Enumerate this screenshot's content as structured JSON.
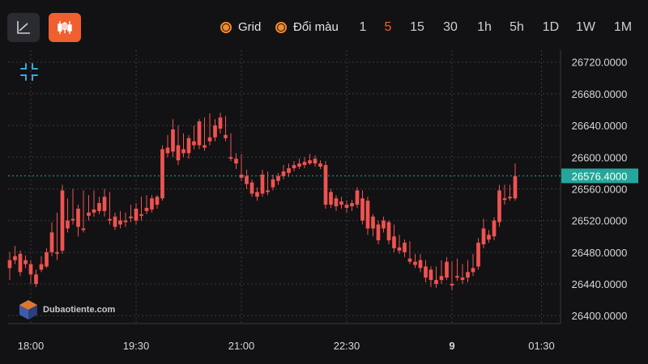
{
  "toolbar": {
    "line_tool_icon": "line-chart-icon",
    "candle_tool_icon": "candlestick-icon",
    "accent": "#ef5f2f",
    "toggles": [
      {
        "label": "Grid"
      },
      {
        "label": "Đổi màu"
      }
    ],
    "timeframes": [
      "1",
      "5",
      "15",
      "30",
      "1h",
      "5h",
      "1D",
      "1W",
      "1M"
    ],
    "active_timeframe": "5"
  },
  "watermark": {
    "text": "Dubaotiente.com"
  },
  "chart_data": {
    "type": "candlestick",
    "grid": true,
    "up_color": "#26a69a",
    "down_color": "#ef5350",
    "x_ticks": [
      "18:00",
      "19:30",
      "21:00",
      "22:30",
      "9",
      "01:30"
    ],
    "y_ticks": [
      "26720.0000",
      "26680.0000",
      "26640.0000",
      "26600.0000",
      "26560.0000",
      "26520.0000",
      "26480.0000",
      "26440.0000",
      "26400.0000"
    ],
    "ylim": [
      26390,
      26735
    ],
    "current_price": "26576.4000",
    "current_value": 26576.4,
    "candles": [
      [
        26470,
        26480,
        26460,
        26445
      ],
      [
        26475,
        26488,
        26470,
        26465
      ],
      [
        26478,
        26482,
        26455,
        26450
      ],
      [
        26470,
        26476,
        26465,
        26460
      ],
      [
        26465,
        26470,
        26452,
        26440
      ],
      [
        26452,
        26458,
        26440,
        26436
      ],
      [
        26465,
        26475,
        26458,
        26455
      ],
      [
        26480,
        26485,
        26462,
        26460
      ],
      [
        26505,
        26518,
        26480,
        26475
      ],
      [
        26480,
        26530,
        26478,
        26470
      ],
      [
        26558,
        26565,
        26482,
        26478
      ],
      [
        26520,
        26548,
        26510,
        26505
      ],
      [
        26522,
        26560,
        26520,
        26515
      ],
      [
        26535,
        26540,
        26512,
        26500
      ],
      [
        26510,
        26558,
        26508,
        26505
      ],
      [
        26530,
        26552,
        26526,
        26520
      ],
      [
        26534,
        26558,
        26530,
        26525
      ],
      [
        26542,
        26550,
        26532,
        26528
      ],
      [
        26550,
        26560,
        26532,
        26525
      ],
      [
        26522,
        26556,
        26520,
        26515
      ],
      [
        26525,
        26530,
        26512,
        26508
      ],
      [
        26520,
        26532,
        26515,
        26510
      ],
      [
        26520,
        26530,
        26518,
        26512
      ],
      [
        26525,
        26540,
        26523,
        26518
      ],
      [
        26535,
        26542,
        26520,
        26515
      ],
      [
        26528,
        26550,
        26526,
        26520
      ],
      [
        26536,
        26552,
        26532,
        26528
      ],
      [
        26548,
        26552,
        26534,
        26530
      ],
      [
        26550,
        26552,
        26540,
        26535
      ],
      [
        26610,
        26615,
        26548,
        26545
      ],
      [
        26612,
        26628,
        26605,
        26600
      ],
      [
        26635,
        26648,
        26607,
        26600
      ],
      [
        26615,
        26640,
        26596,
        26590
      ],
      [
        26610,
        26630,
        26605,
        26600
      ],
      [
        26624,
        26628,
        26605,
        26598
      ],
      [
        26620,
        26640,
        26615,
        26610
      ],
      [
        26645,
        26648,
        26615,
        26610
      ],
      [
        26615,
        26650,
        26612,
        26608
      ],
      [
        26625,
        26655,
        26620,
        26615
      ],
      [
        26640,
        26648,
        26625,
        26620
      ],
      [
        26650,
        26656,
        26636,
        26630
      ],
      [
        26628,
        26652,
        26624,
        26620
      ],
      [
        26600,
        26630,
        26598,
        26595
      ],
      [
        26598,
        26605,
        26592,
        26585
      ],
      [
        26578,
        26604,
        26574,
        26570
      ],
      [
        26576,
        26584,
        26566,
        26560
      ],
      [
        26568,
        26572,
        26554,
        26550
      ],
      [
        26556,
        26562,
        26550,
        26545
      ],
      [
        26578,
        26584,
        26554,
        26550
      ],
      [
        26558,
        26582,
        26556,
        26552
      ],
      [
        26572,
        26578,
        26562,
        26558
      ],
      [
        26576,
        26580,
        26570,
        26565
      ],
      [
        26582,
        26590,
        26576,
        26572
      ],
      [
        26586,
        26592,
        26580,
        26575
      ],
      [
        26590,
        26595,
        26586,
        26582
      ],
      [
        26592,
        26598,
        26588,
        26585
      ],
      [
        26594,
        26600,
        26590,
        26586
      ],
      [
        26596,
        26604,
        26592,
        26590
      ],
      [
        26598,
        26602,
        26592,
        26588
      ],
      [
        26592,
        26596,
        26588,
        26585
      ],
      [
        26590,
        26595,
        26540,
        26535
      ],
      [
        26556,
        26560,
        26540,
        26536
      ],
      [
        26548,
        26552,
        26538,
        26532
      ],
      [
        26544,
        26550,
        26540,
        26535
      ],
      [
        26540,
        26545,
        26536,
        26530
      ],
      [
        26542,
        26546,
        26538,
        26532
      ],
      [
        26558,
        26562,
        26540,
        26536
      ],
      [
        26548,
        26558,
        26520,
        26515
      ],
      [
        26545,
        26550,
        26510,
        26502
      ],
      [
        26525,
        26528,
        26510,
        26500
      ],
      [
        26515,
        26520,
        26495,
        26490
      ],
      [
        26520,
        26525,
        26510,
        26505
      ],
      [
        26518,
        26520,
        26495,
        26490
      ],
      [
        26500,
        26515,
        26485,
        26480
      ],
      [
        26486,
        26502,
        26482,
        26478
      ],
      [
        26492,
        26496,
        26480,
        26474
      ],
      [
        26472,
        26494,
        26468,
        26465
      ],
      [
        26468,
        26478,
        26464,
        26460
      ],
      [
        26470,
        26478,
        26460,
        26455
      ],
      [
        26462,
        26470,
        26448,
        26442
      ],
      [
        26458,
        26462,
        26445,
        26436
      ],
      [
        26445,
        26462,
        26440,
        26435
      ],
      [
        26450,
        26470,
        26445,
        26440
      ],
      [
        26468,
        26474,
        26448,
        26445
      ],
      [
        26440,
        26468,
        26438,
        26432
      ],
      [
        26450,
        26472,
        26448,
        26444
      ],
      [
        26448,
        26465,
        26445,
        26440
      ],
      [
        26455,
        26470,
        26448,
        26442
      ],
      [
        26460,
        26478,
        26455,
        26450
      ],
      [
        26492,
        26498,
        26462,
        26458
      ],
      [
        26510,
        26522,
        26490,
        26485
      ],
      [
        26502,
        26508,
        26496,
        26492
      ],
      [
        26520,
        26524,
        26500,
        26495
      ],
      [
        26558,
        26565,
        26518,
        26512
      ],
      [
        26548,
        26565,
        26546,
        26540
      ],
      [
        26550,
        26565,
        26548,
        26545
      ],
      [
        26576,
        26592,
        26548,
        26545
      ]
    ]
  }
}
